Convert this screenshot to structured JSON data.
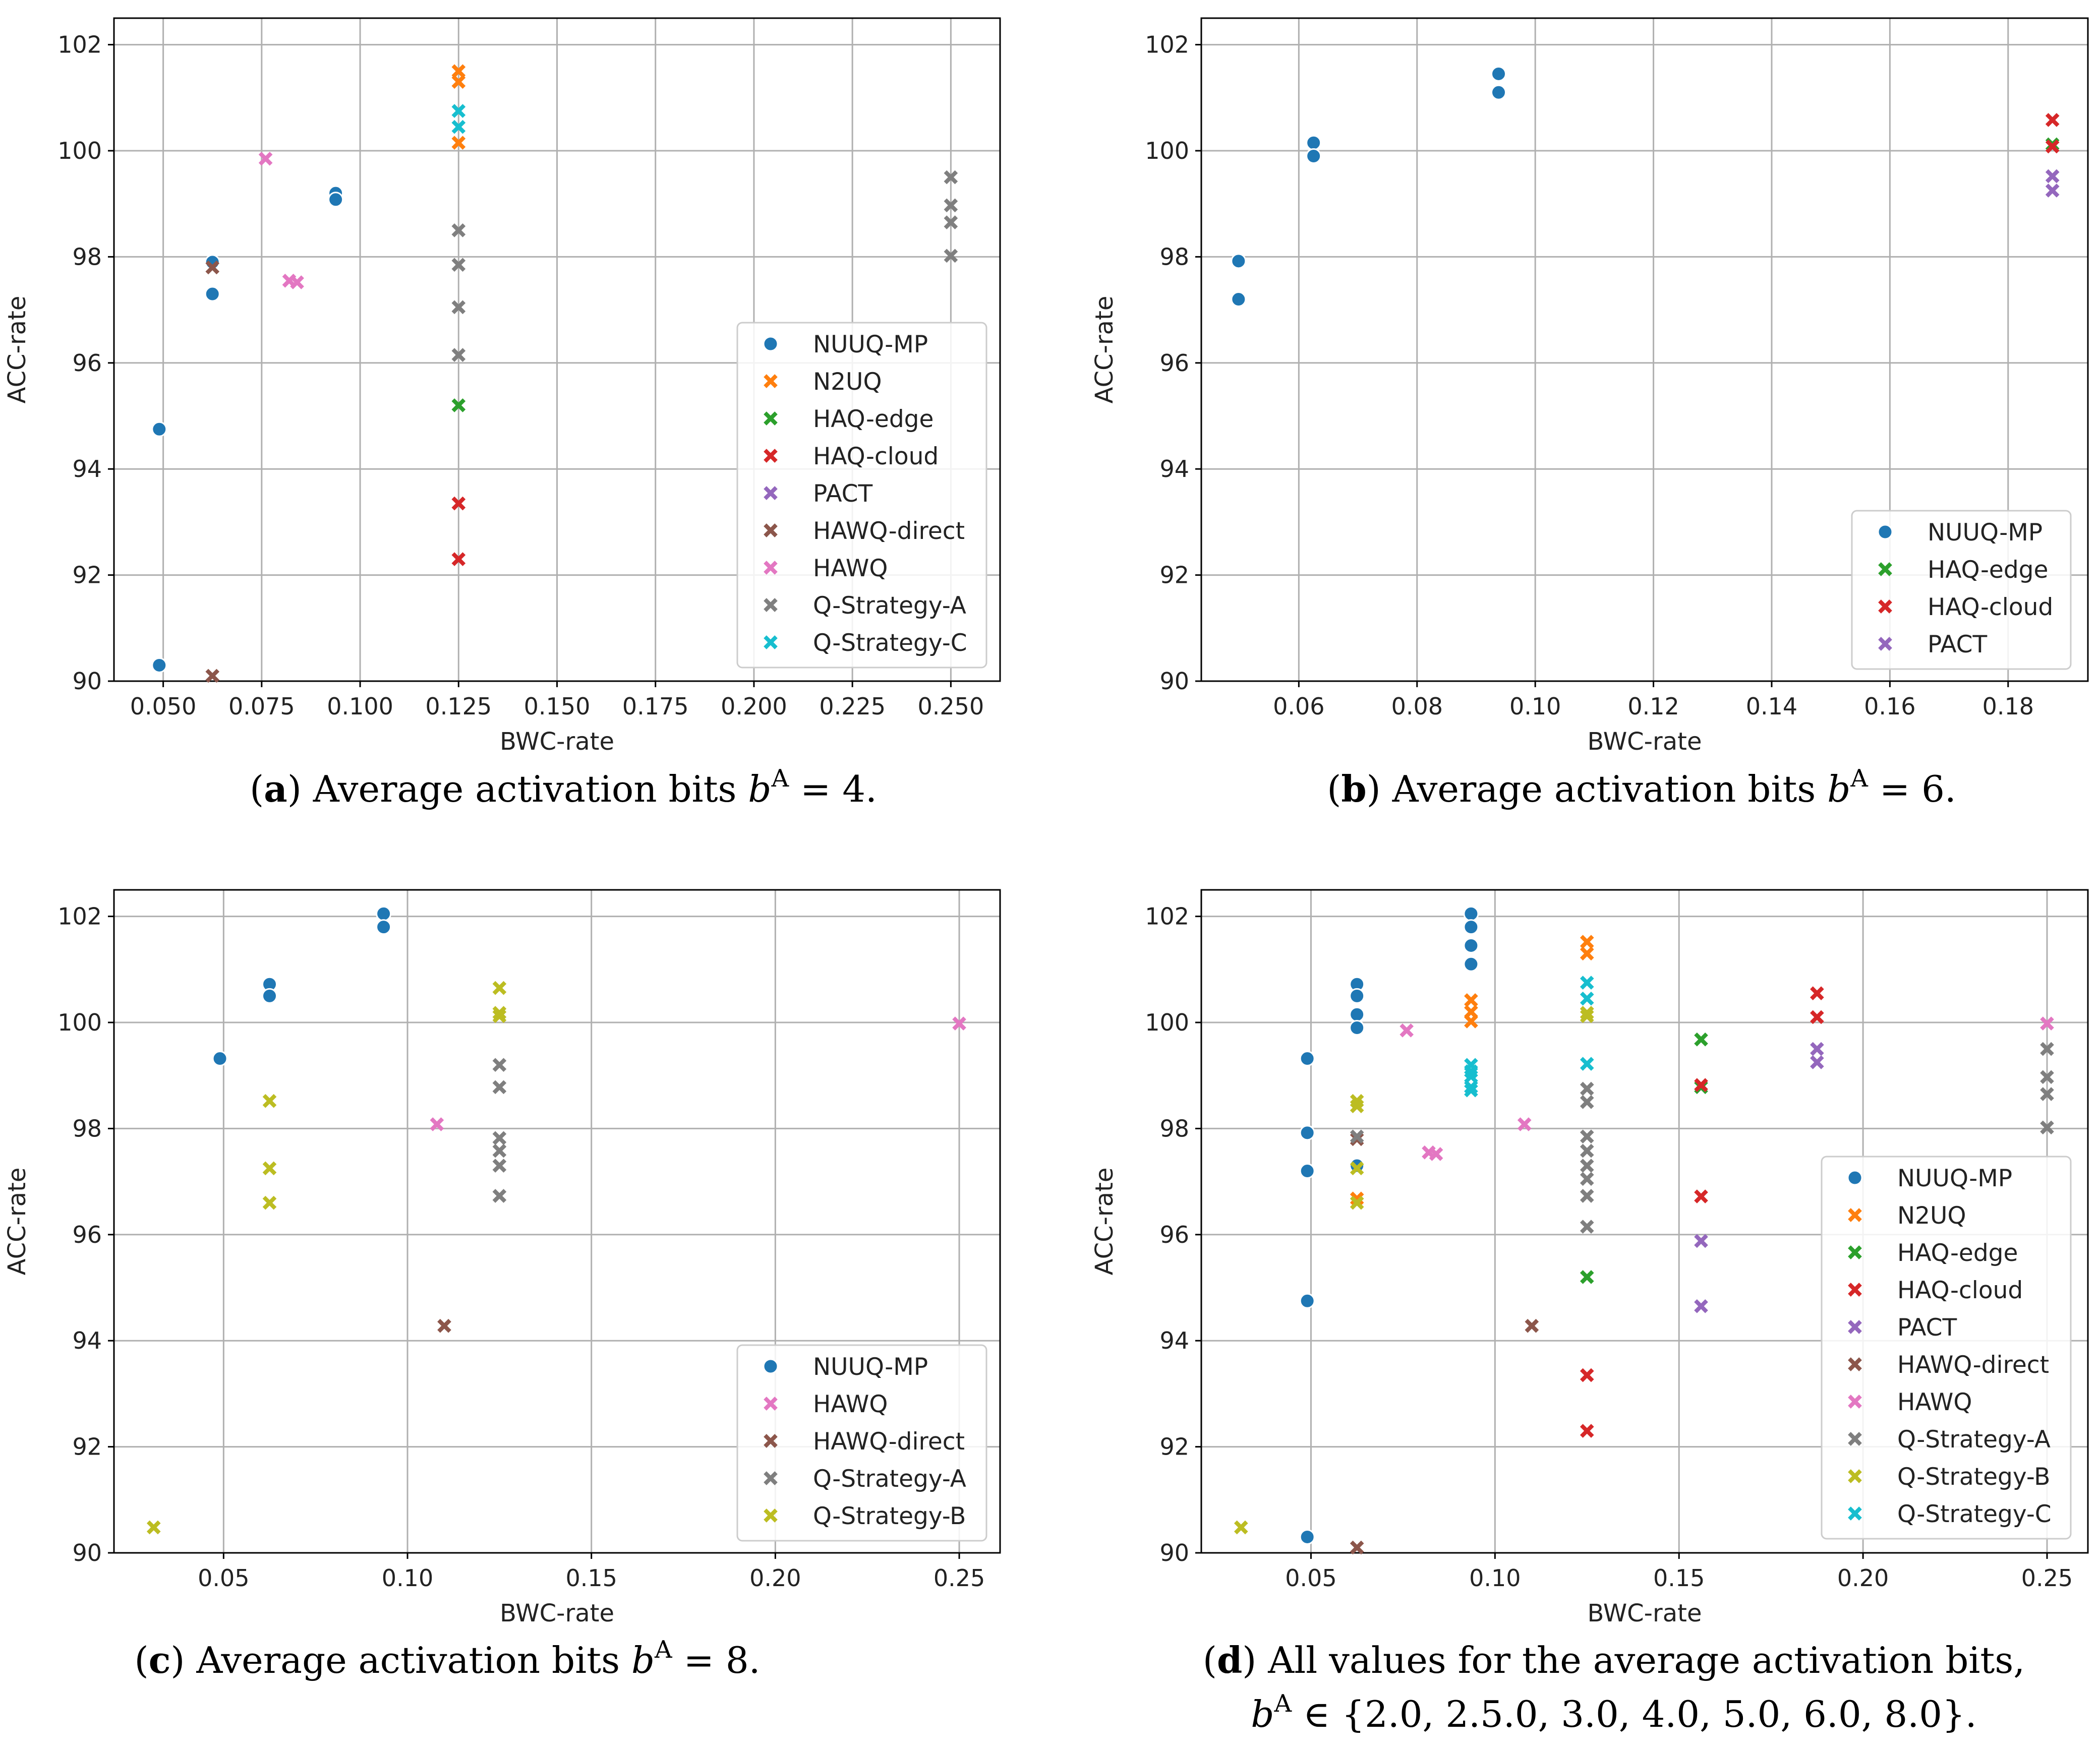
{
  "colors": {
    "NUUQ-MP": "#1f77b4",
    "N2UQ": "#ff7f0e",
    "HAQ-edge": "#2ca02c",
    "HAQ-cloud": "#d62728",
    "PACT": "#9467bd",
    "HAWQ-direct": "#8c564b",
    "HAWQ": "#e377c2",
    "Q-Strategy-A": "#7f7f7f",
    "Q-Strategy-B": "#bcbd22",
    "Q-Strategy-C": "#17becf",
    "grid": "#b0b0b0",
    "frame": "#000000"
  },
  "chart_data": [
    {
      "id": "a",
      "type": "scatter",
      "xlabel": "BWC-rate",
      "ylabel": "ACC-rate",
      "xlim": [
        0.0375,
        0.2625
      ],
      "ylim": [
        90,
        102.5
      ],
      "xticks": [
        0.05,
        0.075,
        0.1,
        0.125,
        0.15,
        0.175,
        0.2,
        0.225,
        0.25
      ],
      "xtick_labels": [
        "0.050",
        "0.075",
        "0.100",
        "0.125",
        "0.150",
        "0.175",
        "0.200",
        "0.225",
        "0.250"
      ],
      "yticks": [
        90,
        92,
        94,
        96,
        98,
        100,
        102
      ],
      "ytick_labels": [
        "90",
        "92",
        "94",
        "96",
        "98",
        "100",
        "102"
      ],
      "legend_position": "center-right",
      "caption": {
        "label": "(a)",
        "text": "Average activation bits",
        "var": "b",
        "sup": "A",
        "tail": "= 4."
      },
      "series": [
        {
          "name": "NUUQ-MP",
          "marker": "dot",
          "x": [
            0.049,
            0.049,
            0.0625,
            0.0625,
            0.0938,
            0.0938
          ],
          "y": [
            94.75,
            90.3,
            97.9,
            97.3,
            99.2,
            99.08
          ]
        },
        {
          "name": "N2UQ",
          "marker": "x",
          "x": [
            0.125,
            0.125,
            0.125
          ],
          "y": [
            101.5,
            101.3,
            100.15
          ]
        },
        {
          "name": "HAQ-edge",
          "marker": "x",
          "x": [
            0.125
          ],
          "y": [
            95.2
          ]
        },
        {
          "name": "HAQ-cloud",
          "marker": "x",
          "x": [
            0.125,
            0.125
          ],
          "y": [
            93.35,
            92.3
          ]
        },
        {
          "name": "PACT",
          "marker": "x",
          "x": [],
          "y": []
        },
        {
          "name": "HAWQ-direct",
          "marker": "x",
          "x": [
            0.0625,
            0.0625
          ],
          "y": [
            97.8,
            90.1
          ]
        },
        {
          "name": "HAWQ",
          "marker": "x",
          "x": [
            0.076,
            0.082,
            0.084
          ],
          "y": [
            99.85,
            97.55,
            97.52
          ]
        },
        {
          "name": "Q-Strategy-A",
          "marker": "x",
          "x": [
            0.125,
            0.125,
            0.125,
            0.125,
            0.25,
            0.25,
            0.25,
            0.25
          ],
          "y": [
            98.5,
            97.85,
            97.05,
            96.15,
            99.5,
            98.97,
            98.65,
            98.02
          ]
        },
        {
          "name": "Q-Strategy-C",
          "marker": "x",
          "x": [
            0.125,
            0.125
          ],
          "y": [
            100.75,
            100.45
          ]
        }
      ]
    },
    {
      "id": "b",
      "type": "scatter",
      "xlabel": "BWC-rate",
      "ylabel": "ACC-rate",
      "xlim": [
        0.0435,
        0.1935
      ],
      "ylim": [
        90,
        102.5
      ],
      "xticks": [
        0.06,
        0.08,
        0.1,
        0.12,
        0.14,
        0.16,
        0.18
      ],
      "xtick_labels": [
        "0.06",
        "0.08",
        "0.10",
        "0.12",
        "0.14",
        "0.16",
        "0.18"
      ],
      "yticks": [
        90,
        92,
        94,
        96,
        98,
        100,
        102
      ],
      "ytick_labels": [
        "90",
        "92",
        "94",
        "96",
        "98",
        "100",
        "102"
      ],
      "legend_position": "lower-right",
      "caption": {
        "label": "(b)",
        "text": "Average activation bits",
        "var": "b",
        "sup": "A",
        "tail": "= 6."
      },
      "series": [
        {
          "name": "NUUQ-MP",
          "marker": "dot",
          "x": [
            0.0498,
            0.0498,
            0.0625,
            0.0625,
            0.0938,
            0.0938
          ],
          "y": [
            97.92,
            97.2,
            100.15,
            99.9,
            101.45,
            101.1
          ]
        },
        {
          "name": "HAQ-edge",
          "marker": "x",
          "x": [
            0.1875
          ],
          "y": [
            100.12
          ]
        },
        {
          "name": "HAQ-cloud",
          "marker": "x",
          "x": [
            0.1875,
            0.1875
          ],
          "y": [
            100.58,
            100.08
          ]
        },
        {
          "name": "PACT",
          "marker": "x",
          "x": [
            0.1875,
            0.1875
          ],
          "y": [
            99.52,
            99.25
          ]
        }
      ]
    },
    {
      "id": "c",
      "type": "scatter",
      "xlabel": "BWC-rate",
      "ylabel": "ACC-rate",
      "xlim": [
        0.0202,
        0.2611
      ],
      "ylim": [
        90,
        102.5
      ],
      "xticks": [
        0.05,
        0.1,
        0.15,
        0.2,
        0.25
      ],
      "xtick_labels": [
        "0.05",
        "0.10",
        "0.15",
        "0.20",
        "0.25"
      ],
      "yticks": [
        90,
        92,
        94,
        96,
        98,
        100,
        102
      ],
      "ytick_labels": [
        "90",
        "92",
        "94",
        "96",
        "98",
        "100",
        "102"
      ],
      "legend_position": "lower-right",
      "caption": {
        "label": "(c)",
        "text": "Average activation bits",
        "var": "b",
        "sup": "A",
        "tail": "= 8."
      },
      "series": [
        {
          "name": "NUUQ-MP",
          "marker": "dot",
          "x": [
            0.049,
            0.0625,
            0.0625,
            0.0935,
            0.0935
          ],
          "y": [
            99.32,
            100.72,
            100.5,
            102.05,
            101.8
          ]
        },
        {
          "name": "HAWQ",
          "marker": "x",
          "x": [
            0.108,
            0.25
          ],
          "y": [
            98.08,
            99.98
          ]
        },
        {
          "name": "HAWQ-direct",
          "marker": "x",
          "x": [
            0.11
          ],
          "y": [
            94.28
          ]
        },
        {
          "name": "Q-Strategy-A",
          "marker": "x",
          "x": [
            0.125,
            0.125,
            0.125,
            0.125,
            0.125,
            0.125
          ],
          "y": [
            99.2,
            98.78,
            97.82,
            97.58,
            97.3,
            96.73
          ]
        },
        {
          "name": "Q-Strategy-B",
          "marker": "x",
          "x": [
            0.031,
            0.0625,
            0.0625,
            0.0625,
            0.125,
            0.125,
            0.125
          ],
          "y": [
            90.48,
            98.52,
            97.25,
            96.6,
            100.65,
            100.18,
            100.12
          ]
        }
      ]
    },
    {
      "id": "d",
      "type": "scatter",
      "xlabel": "BWC-rate",
      "ylabel": "ACC-rate",
      "xlim": [
        0.0202,
        0.2611
      ],
      "ylim": [
        90,
        102.5
      ],
      "xticks": [
        0.05,
        0.1,
        0.15,
        0.2,
        0.25
      ],
      "xtick_labels": [
        "0.05",
        "0.10",
        "0.15",
        "0.20",
        "0.25"
      ],
      "yticks": [
        90,
        92,
        94,
        96,
        98,
        100,
        102
      ],
      "ytick_labels": [
        "90",
        "92",
        "94",
        "96",
        "98",
        "100",
        "102"
      ],
      "legend_position": "lower-right",
      "caption": {
        "label": "(d)",
        "text": "All values for the average activation bits,",
        "var": "b",
        "sup": "A",
        "tail": "∈ {2.0, 2.5.0, 3.0, 4.0, 5.0, 6.0, 8.0}."
      },
      "series": [
        {
          "name": "NUUQ-MP",
          "marker": "dot",
          "x": [
            0.049,
            0.049,
            0.049,
            0.049,
            0.049,
            0.0625,
            0.0625,
            0.0625,
            0.0625,
            0.0625,
            0.0935,
            0.0935,
            0.0935,
            0.0935
          ],
          "y": [
            99.32,
            97.92,
            97.2,
            94.75,
            90.3,
            100.72,
            100.5,
            100.15,
            99.9,
            97.3,
            102.05,
            101.8,
            101.45,
            101.1
          ]
        },
        {
          "name": "N2UQ",
          "marker": "x",
          "x": [
            0.0625,
            0.0935,
            0.0935,
            0.0935,
            0.125,
            0.125,
            0.125
          ],
          "y": [
            96.68,
            100.42,
            100.2,
            100.02,
            101.52,
            101.3,
            100.18
          ]
        },
        {
          "name": "HAQ-edge",
          "marker": "x",
          "x": [
            0.125,
            0.156,
            0.156
          ],
          "y": [
            95.2,
            99.68,
            98.78
          ]
        },
        {
          "name": "HAQ-cloud",
          "marker": "x",
          "x": [
            0.125,
            0.125,
            0.156,
            0.156,
            0.1875,
            0.1875
          ],
          "y": [
            93.35,
            92.3,
            98.82,
            96.72,
            100.55,
            100.1
          ]
        },
        {
          "name": "PACT",
          "marker": "x",
          "x": [
            0.156,
            0.156,
            0.1875,
            0.1875
          ],
          "y": [
            95.88,
            94.65,
            99.5,
            99.25
          ]
        },
        {
          "name": "HAWQ-direct",
          "marker": "x",
          "x": [
            0.0625,
            0.0625,
            0.11
          ],
          "y": [
            97.8,
            90.1,
            94.28
          ]
        },
        {
          "name": "HAWQ",
          "marker": "x",
          "x": [
            0.076,
            0.082,
            0.084,
            0.108,
            0.25
          ],
          "y": [
            99.85,
            97.55,
            97.52,
            98.08,
            99.98
          ]
        },
        {
          "name": "Q-Strategy-A",
          "marker": "x",
          "x": [
            0.0625,
            0.125,
            0.125,
            0.125,
            0.125,
            0.125,
            0.125,
            0.125,
            0.125,
            0.25,
            0.25,
            0.25,
            0.25
          ],
          "y": [
            97.85,
            98.75,
            98.5,
            97.85,
            97.58,
            97.3,
            97.05,
            96.73,
            96.15,
            99.5,
            98.97,
            98.65,
            98.02
          ]
        },
        {
          "name": "Q-Strategy-B",
          "marker": "x",
          "x": [
            0.031,
            0.0625,
            0.0625,
            0.0625,
            0.0625,
            0.125,
            0.125
          ],
          "y": [
            90.48,
            98.52,
            98.42,
            97.25,
            96.6,
            100.18,
            100.12
          ]
        },
        {
          "name": "Q-Strategy-C",
          "marker": "x",
          "x": [
            0.0935,
            0.0935,
            0.0935,
            0.0935,
            0.0935,
            0.125,
            0.125,
            0.125
          ],
          "y": [
            99.2,
            99.08,
            98.98,
            98.78,
            98.72,
            100.75,
            100.45,
            99.22
          ]
        }
      ]
    }
  ]
}
